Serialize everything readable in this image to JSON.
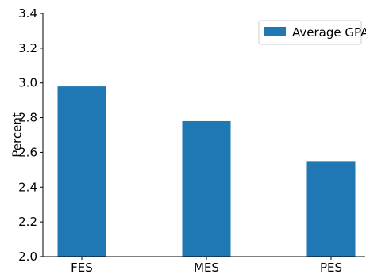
{
  "chart_data": {
    "type": "bar",
    "categories": [
      "FES",
      "MES",
      "PES"
    ],
    "series": [
      {
        "name": "Average GPA",
        "values": [
          2.98,
          2.78,
          2.55
        ],
        "color": "#1f77b4"
      }
    ],
    "title": "",
    "xlabel": "",
    "ylabel": "Percent",
    "ylim": [
      2.0,
      3.4
    ],
    "yticks": [
      "2.0",
      "2.2",
      "2.4",
      "2.6",
      "2.8",
      "3.0",
      "3.2",
      "3.4"
    ],
    "grid": false,
    "legend": "top-right"
  }
}
